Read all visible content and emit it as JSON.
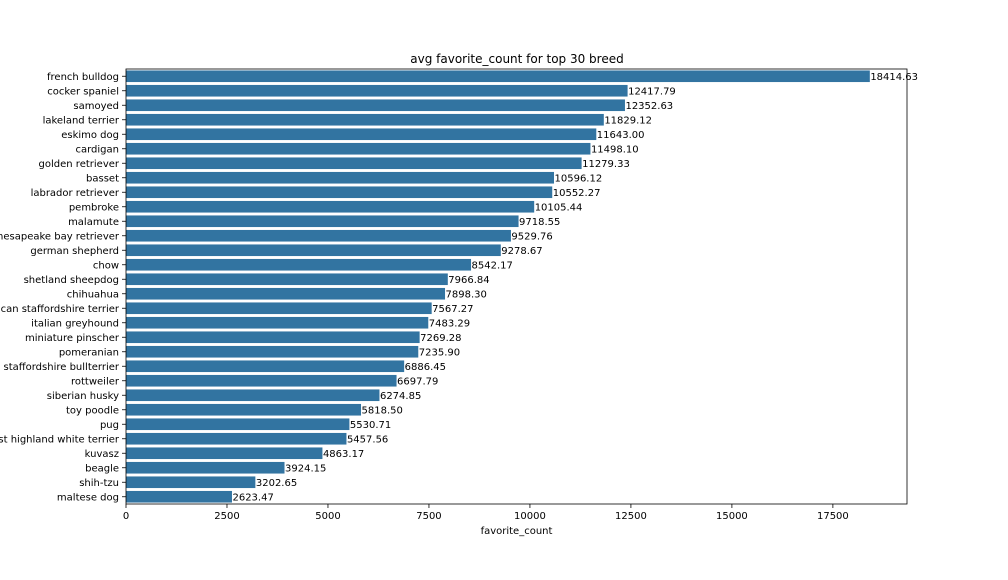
{
  "chart_data": {
    "type": "bar",
    "orientation": "horizontal",
    "title": "avg favorite_count for top 30 breed",
    "xlabel": "favorite_count",
    "ylabel": "",
    "xlim": [
      0,
      19335
    ],
    "xticks": [
      0,
      2500,
      5000,
      7500,
      10000,
      12500,
      15000,
      17500
    ],
    "xtick_labels": [
      "0",
      "2500",
      "5000",
      "7500",
      "10000",
      "12500",
      "15000",
      "17500"
    ],
    "grid": false,
    "bar_color": "#3274a1",
    "categories": [
      "french bulldog",
      "cocker spaniel",
      "samoyed",
      "lakeland terrier",
      "eskimo dog",
      "cardigan",
      "golden retriever",
      "basset",
      "labrador retriever",
      "pembroke",
      "malamute",
      "chesapeake bay retriever",
      "german shepherd",
      "chow",
      "shetland sheepdog",
      "chihuahua",
      "american staffordshire terrier",
      "italian greyhound",
      "miniature pinscher",
      "pomeranian",
      "staffordshire bullterrier",
      "rottweiler",
      "siberian husky",
      "toy poodle",
      "pug",
      "west highland white terrier",
      "kuvasz",
      "beagle",
      "shih-tzu",
      "maltese dog"
    ],
    "values": [
      18414.63,
      12417.79,
      12352.63,
      11829.12,
      11643.0,
      11498.1,
      11279.33,
      10596.12,
      10552.27,
      10105.44,
      9718.55,
      9529.76,
      9278.67,
      8542.17,
      7966.84,
      7898.3,
      7567.27,
      7483.29,
      7269.28,
      7235.9,
      6886.45,
      6697.79,
      6274.85,
      5818.5,
      5530.71,
      5457.56,
      4863.17,
      3924.15,
      3202.65,
      2623.47
    ],
    "value_labels": [
      "18414.63",
      "12417.79",
      "12352.63",
      "11829.12",
      "11643.00",
      "11498.10",
      "11279.33",
      "10596.12",
      "10552.27",
      "10105.44",
      "9718.55",
      "9529.76",
      "9278.67",
      "8542.17",
      "7966.84",
      "7898.30",
      "7567.27",
      "7483.29",
      "7269.28",
      "7235.90",
      "6886.45",
      "6697.79",
      "6274.85",
      "5818.50",
      "5530.71",
      "5457.56",
      "4863.17",
      "3924.15",
      "3202.65",
      "2623.47"
    ]
  }
}
